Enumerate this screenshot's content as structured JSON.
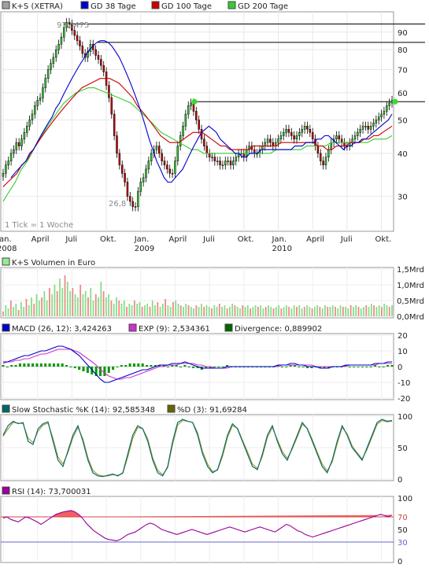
{
  "chart_data": [
    {
      "type": "candlestick",
      "panel": "price",
      "legend": [
        {
          "label": "K+S (XETRA)",
          "color": "#a0a0a0"
        },
        {
          "label": "GD 38 Tage",
          "color": "#0000cc"
        },
        {
          "label": "GD 100 Tage",
          "color": "#cc0000"
        },
        {
          "label": "GD 200 Tage",
          "color": "#33cc33"
        }
      ],
      "y_scale": "log",
      "y_ticks": [
        30,
        40,
        50,
        60,
        70,
        80,
        90
      ],
      "x_ticks": [
        {
          "label": "Jan.",
          "sub": "2008",
          "t": 0
        },
        {
          "label": "April",
          "sub": "",
          "t": 13
        },
        {
          "label": "Juli",
          "sub": "",
          "t": 26
        },
        {
          "label": "Okt.",
          "sub": "",
          "t": 39
        },
        {
          "label": "Jan.",
          "sub": "2009",
          "t": 52
        },
        {
          "label": "April",
          "sub": "",
          "t": 65
        },
        {
          "label": "Juli",
          "sub": "",
          "t": 78
        },
        {
          "label": "Okt.",
          "sub": "",
          "t": 91
        },
        {
          "label": "Jan.",
          "sub": "2010",
          "t": 104
        },
        {
          "label": "April",
          "sub": "",
          "t": 117
        },
        {
          "label": "Juli",
          "sub": "",
          "t": 130
        },
        {
          "label": "Okt.",
          "sub": "",
          "t": 143
        }
      ],
      "annotations": {
        "high": "97,3475",
        "low": "26,8",
        "tick_note": "1 Tick = 1 Woche"
      },
      "close": [
        35,
        37,
        38,
        40,
        41,
        43,
        42,
        44,
        46,
        48,
        50,
        52,
        55,
        57,
        58,
        62,
        66,
        70,
        73,
        76,
        80,
        83,
        87,
        93,
        96,
        95,
        91,
        88,
        85,
        82,
        78,
        76,
        79,
        83,
        80,
        77,
        75,
        72,
        69,
        63,
        58,
        52,
        45,
        40,
        37,
        35,
        33,
        30,
        29,
        28,
        28,
        31,
        33,
        34,
        36,
        38,
        40,
        41,
        42,
        40,
        38,
        37,
        36,
        35,
        35,
        38,
        42,
        45,
        48,
        52,
        55,
        56,
        53,
        50,
        47,
        44,
        42,
        40,
        39,
        39,
        38,
        38,
        37,
        37,
        38,
        38,
        37,
        38,
        39,
        40,
        40,
        39,
        41,
        42,
        41,
        40,
        40,
        41,
        42,
        43,
        44,
        43,
        42,
        43,
        44,
        45,
        46,
        47,
        46,
        45,
        44,
        45,
        46,
        47,
        48,
        47,
        46,
        44,
        42,
        40,
        38,
        37,
        39,
        41,
        43,
        44,
        45,
        44,
        43,
        42,
        42,
        43,
        44,
        45,
        46,
        47,
        48,
        48,
        47,
        48,
        49,
        50,
        51,
        52,
        53,
        55,
        56,
        57
      ],
      "ma38": [
        34,
        35,
        36,
        37,
        38,
        40,
        41,
        43,
        45,
        47,
        49,
        51,
        54,
        56,
        59,
        62,
        65,
        68,
        71,
        74,
        77,
        80,
        82,
        84,
        85,
        85,
        84,
        82,
        79,
        76,
        72,
        68,
        64,
        60,
        56,
        52,
        48,
        44,
        41,
        38,
        36,
        34,
        33,
        33,
        34,
        35,
        36,
        38,
        40,
        42,
        44,
        46,
        47,
        48,
        47,
        46,
        44,
        43,
        42,
        41,
        40,
        40,
        39,
        39,
        40,
        40,
        40,
        41,
        41,
        41,
        41,
        41,
        41,
        41,
        41,
        41,
        42,
        42,
        42,
        43,
        43,
        43,
        44,
        44,
        45,
        45,
        44,
        43,
        42,
        41,
        42,
        42,
        43,
        43,
        44,
        44,
        45,
        46,
        47,
        48,
        49,
        50,
        52
      ],
      "ma100": [
        32,
        33,
        34,
        35,
        37,
        38,
        40,
        42,
        44,
        46,
        48,
        50,
        52,
        54,
        56,
        58,
        60,
        62,
        63,
        64,
        65,
        66,
        66,
        66,
        65,
        64,
        62,
        60,
        58,
        55,
        53,
        51,
        49,
        47,
        45,
        44,
        43,
        43,
        43,
        44,
        45,
        46,
        46,
        46,
        45,
        44,
        43,
        42,
        42,
        41,
        41,
        41,
        41,
        41,
        42,
        42,
        42,
        42,
        42,
        42,
        43,
        43,
        43,
        43,
        43,
        43,
        43,
        43,
        42,
        42,
        41,
        41,
        42,
        42,
        42,
        43,
        43,
        43,
        44,
        44,
        45,
        45,
        46,
        47,
        48
      ],
      "ma200": [
        29,
        31,
        33,
        36,
        38,
        41,
        44,
        47,
        50,
        53,
        56,
        58,
        60,
        61,
        62,
        62,
        61,
        60,
        59,
        58,
        57,
        56,
        54,
        52,
        50,
        48,
        46,
        45,
        44,
        43,
        42,
        41,
        41,
        40,
        40,
        40,
        40,
        40,
        40,
        40,
        40,
        40,
        40,
        40,
        40,
        41,
        41,
        41,
        41,
        41,
        42,
        42,
        42,
        42,
        43,
        43,
        43,
        43,
        43,
        43,
        43,
        44,
        44,
        44,
        45
      ],
      "hlines": [
        95,
        84,
        56.5
      ]
    },
    {
      "type": "bar",
      "panel": "volume",
      "legend": [
        {
          "label": "K+S Volumen in Euro",
          "color": "#90ee90"
        }
      ],
      "y_ticks": [
        "0,0Mrd",
        "0,5Mrd",
        "1,0Mrd",
        "1,5Mrd"
      ],
      "ylim": [
        0,
        1.5
      ],
      "values": [
        0.15,
        0.35,
        0.25,
        0.5,
        0.3,
        0.4,
        0.2,
        0.45,
        0.3,
        0.55,
        0.35,
        0.6,
        0.4,
        0.7,
        0.5,
        0.6,
        0.8,
        0.5,
        0.9,
        0.7,
        1.0,
        0.8,
        1.2,
        0.9,
        1.3,
        1.1,
        0.8,
        0.9,
        0.7,
        0.6,
        1.0,
        0.7,
        0.8,
        0.6,
        0.9,
        0.5,
        0.7,
        0.6,
        1.1,
        0.8,
        0.6,
        0.7,
        0.5,
        0.4,
        0.6,
        0.5,
        0.4,
        0.5,
        0.3,
        0.4,
        0.35,
        0.5,
        0.4,
        0.45,
        0.3,
        0.35,
        0.4,
        0.3,
        0.5,
        0.35,
        0.45,
        0.3,
        0.4,
        0.55,
        0.35,
        0.3,
        0.45,
        0.5,
        0.4,
        0.35,
        0.3,
        0.4,
        0.35,
        0.3,
        0.25,
        0.35,
        0.3,
        0.4,
        0.3,
        0.35,
        0.3,
        0.25,
        0.35,
        0.3,
        0.4,
        0.3,
        0.35,
        0.25,
        0.3,
        0.4,
        0.35,
        0.3,
        0.25,
        0.35,
        0.3,
        0.35,
        0.25,
        0.3,
        0.35,
        0.3,
        0.35,
        0.25,
        0.3,
        0.35,
        0.3,
        0.25,
        0.3,
        0.35,
        0.25,
        0.3,
        0.35,
        0.3,
        0.25,
        0.35,
        0.3,
        0.35,
        0.25,
        0.3,
        0.35,
        0.3,
        0.25,
        0.3,
        0.35,
        0.3,
        0.25,
        0.35,
        0.3,
        0.3,
        0.35,
        0.3,
        0.25,
        0.35,
        0.3,
        0.3,
        0.25,
        0.35,
        0.3,
        0.35,
        0.3,
        0.25,
        0.3,
        0.35,
        0.3,
        0.4,
        0.35,
        0.3,
        0.35,
        0.3,
        0.4,
        0.35,
        0.3,
        0.35
      ]
    },
    {
      "type": "line",
      "panel": "macd",
      "legend": [
        {
          "label": "MACD (26, 12): 3,424263",
          "color": "#0000cc"
        },
        {
          "label": "EXP (9): 2,534361",
          "color": "#cc33cc"
        },
        {
          "label": "Divergence: 0,889902",
          "color": "#006600"
        }
      ],
      "y_ticks": [
        20,
        10,
        0,
        -10,
        -20
      ],
      "ylim": [
        -20,
        20
      ],
      "series": [
        {
          "name": "MACD",
          "values": [
            3,
            3,
            4,
            5,
            6,
            7,
            7,
            8,
            9,
            10,
            10,
            11,
            12,
            13,
            13,
            12,
            11,
            9,
            7,
            4,
            1,
            -2,
            -5,
            -8,
            -10,
            -10,
            -9,
            -8,
            -7,
            -6,
            -5,
            -4,
            -3,
            -2,
            -2,
            -1,
            0,
            1,
            1,
            1,
            2,
            2,
            2,
            3,
            2,
            1,
            0,
            -1,
            -1,
            -1,
            -1,
            -1,
            -1,
            0,
            0,
            0,
            0,
            0,
            0,
            0,
            0,
            0,
            0,
            0,
            0,
            1,
            1,
            1,
            2,
            2,
            1,
            1,
            0,
            0,
            0,
            -1,
            -1,
            -1,
            0,
            0,
            0,
            1,
            1,
            1,
            1,
            1,
            1,
            1,
            2,
            2,
            2,
            3,
            3
          ]
        },
        {
          "name": "EXP",
          "values": [
            2,
            3,
            3,
            4,
            4,
            5,
            5,
            6,
            7,
            8,
            8,
            9,
            10,
            11,
            11,
            11,
            11,
            10,
            9,
            7,
            5,
            3,
            1,
            -2,
            -4,
            -6,
            -7,
            -8,
            -8,
            -7,
            -7,
            -6,
            -5,
            -4,
            -3,
            -2,
            -1,
            0,
            0,
            1,
            1,
            1,
            2,
            2,
            2,
            2,
            1,
            1,
            0,
            0,
            -1,
            -1,
            -1,
            -1,
            0,
            0,
            0,
            0,
            0,
            0,
            0,
            0,
            0,
            0,
            0,
            0,
            1,
            1,
            1,
            1,
            1,
            1,
            1,
            1,
            0,
            0,
            0,
            0,
            0,
            0,
            0,
            0,
            1,
            1,
            1,
            1,
            1,
            1,
            1,
            2,
            2,
            2,
            2
          ]
        }
      ]
    },
    {
      "type": "line",
      "panel": "stochastic",
      "legend": [
        {
          "label": "Slow Stochastic %K (14): 92,585348",
          "color": "#006666"
        },
        {
          "label": "%D (3): 91,69284",
          "color": "#666600"
        }
      ],
      "y_ticks": [
        100,
        50,
        0
      ],
      "ylim": [
        0,
        100
      ],
      "series": [
        {
          "name": "%K",
          "values": [
            70,
            85,
            92,
            88,
            90,
            60,
            55,
            80,
            88,
            91,
            60,
            30,
            20,
            45,
            70,
            85,
            60,
            30,
            10,
            5,
            4,
            6,
            8,
            5,
            10,
            40,
            70,
            85,
            80,
            60,
            30,
            10,
            5,
            20,
            60,
            90,
            95,
            92,
            90,
            70,
            40,
            20,
            10,
            15,
            40,
            70,
            88,
            80,
            60,
            40,
            20,
            15,
            40,
            70,
            85,
            60,
            40,
            30,
            50,
            70,
            90,
            80,
            60,
            40,
            20,
            10,
            30,
            60,
            85,
            70,
            50,
            40,
            30,
            50,
            70,
            90,
            95,
            92,
            93
          ]
        },
        {
          "name": "%D",
          "values": [
            68,
            80,
            90,
            89,
            88,
            65,
            58,
            76,
            86,
            89,
            65,
            35,
            24,
            42,
            66,
            82,
            64,
            34,
            14,
            7,
            5,
            5,
            7,
            6,
            9,
            35,
            65,
            82,
            80,
            64,
            34,
            14,
            7,
            18,
            55,
            86,
            93,
            92,
            90,
            74,
            44,
            24,
            12,
            14,
            36,
            66,
            85,
            81,
            62,
            44,
            24,
            17,
            36,
            66,
            82,
            63,
            44,
            33,
            48,
            67,
            87,
            81,
            63,
            43,
            24,
            13,
            27,
            56,
            82,
            72,
            53,
            42,
            32,
            47,
            67,
            87,
            93,
            91,
            92
          ]
        }
      ]
    },
    {
      "type": "line",
      "panel": "rsi",
      "legend": [
        {
          "label": "RSI (14): 73,700031",
          "color": "#990099"
        }
      ],
      "y_ticks": [
        100,
        50,
        0
      ],
      "ylim": [
        0,
        100
      ],
      "levels": [
        {
          "value": 70,
          "label": "70",
          "color": "#cc4444"
        },
        {
          "value": 30,
          "label": "30",
          "color": "#6666cc"
        }
      ],
      "series": [
        {
          "name": "RSI",
          "values": [
            68,
            70,
            66,
            64,
            62,
            66,
            70,
            68,
            65,
            62,
            58,
            62,
            66,
            70,
            74,
            76,
            78,
            79,
            80,
            78,
            74,
            68,
            60,
            54,
            48,
            44,
            40,
            36,
            34,
            33,
            32,
            34,
            38,
            42,
            44,
            46,
            50,
            54,
            58,
            60,
            58,
            54,
            50,
            48,
            46,
            44,
            42,
            44,
            46,
            48,
            50,
            48,
            46,
            44,
            42,
            44,
            46,
            48,
            50,
            52,
            54,
            52,
            50,
            48,
            46,
            48,
            50,
            52,
            54,
            52,
            50,
            48,
            46,
            50,
            54,
            58,
            56,
            52,
            48,
            46,
            42,
            40,
            38,
            40,
            42,
            44,
            46,
            48,
            50,
            52,
            54,
            56,
            58,
            60,
            62,
            64,
            66,
            68,
            70,
            72,
            74,
            72,
            70,
            73
          ]
        }
      ]
    }
  ]
}
